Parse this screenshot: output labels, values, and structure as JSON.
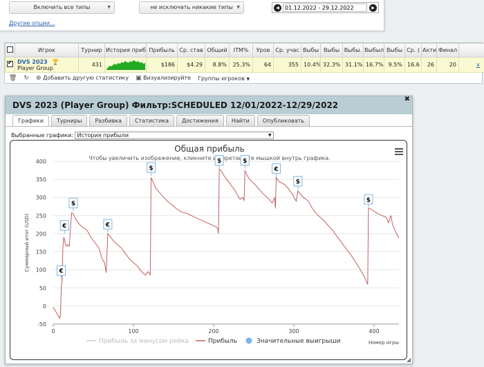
{
  "filters": {
    "type_filter": "Включить все типы",
    "exclude_filter": "не исключать никакие типы",
    "date_range": "01.12.2022 - 29.12.2022",
    "other_options": "Другие опции..."
  },
  "stats": {
    "headers": [
      "Игрок",
      "Турнир",
      "История приб",
      "Прибыль",
      "Ср. став",
      "Общий",
      "ITM%",
      "Уров",
      "Ср. учас",
      "Выбы",
      "Выбы",
      "Выбы.",
      "Выбыл",
      "Выбы",
      "Ср. (",
      "Акти",
      "Финал"
    ],
    "row": {
      "player": "DVS 2023",
      "group": "Player Group",
      "tournaments": "431",
      "profit": "$186",
      "avg_stake": "$4.29",
      "roi": "8.8%",
      "itm": "25.3%",
      "level": "64",
      "avg_entrants": "355",
      "out1": "10.4%",
      "out2": "32.3%",
      "out3": "31.1%",
      "out4": "16.7%",
      "out5": "9.5%",
      "avg_col": "16.6",
      "active": "26",
      "final": "20",
      "remove": "x"
    },
    "toolbar": {
      "add_stat": "Добавить другую статистику",
      "visualize": "Визуализируйте",
      "player_groups": "Группы игроков"
    }
  },
  "dialog": {
    "title": "DVS 2023 (Player Group) Фильтр:SCHEDULED 12/01/2022-12/29/2022",
    "tabs": [
      "Графики",
      "Турниры",
      "Разбивка",
      "Статистика",
      "Достижения",
      "Найти",
      "Опубликовать"
    ],
    "active_tab": 0,
    "selected_label": "Выбранные графики:",
    "selected_value": "История прибыли"
  },
  "chart_data": {
    "type": "line",
    "title": "Общая прибыль",
    "subtitle": "Чтобы увеличить изображение, кликните и перетащите мышкой внутрь графика.",
    "xlabel": "Номер игры",
    "ylabel": "Суммарный итог (USD)",
    "xlim": [
      0,
      431
    ],
    "ylim": [
      -50,
      400
    ],
    "xticks": [
      0,
      100,
      200,
      300,
      400
    ],
    "yticks": [
      -50,
      0,
      50,
      100,
      150,
      200,
      250,
      300,
      350,
      400
    ],
    "grid": true,
    "legend_position": "bottom",
    "series": [
      {
        "name": "Прибыль",
        "color": "#c06060",
        "points": [
          [
            0,
            -3
          ],
          [
            3,
            -15
          ],
          [
            5,
            -22
          ],
          [
            7,
            -30
          ],
          [
            8,
            -34
          ],
          [
            9,
            -25
          ],
          [
            10,
            50
          ],
          [
            11,
            70
          ],
          [
            12,
            160
          ],
          [
            13,
            190
          ],
          [
            14,
            185
          ],
          [
            15,
            170
          ],
          [
            17,
            165
          ],
          [
            18,
            170
          ],
          [
            20,
            165
          ],
          [
            22,
            230
          ],
          [
            23,
            258
          ],
          [
            25,
            255
          ],
          [
            28,
            240
          ],
          [
            33,
            225
          ],
          [
            38,
            215
          ],
          [
            42,
            210
          ],
          [
            47,
            190
          ],
          [
            52,
            175
          ],
          [
            57,
            160
          ],
          [
            61,
            130
          ],
          [
            64,
            120
          ],
          [
            66,
            92
          ],
          [
            68,
            200
          ],
          [
            70,
            195
          ],
          [
            75,
            180
          ],
          [
            80,
            170
          ],
          [
            85,
            160
          ],
          [
            90,
            145
          ],
          [
            95,
            130
          ],
          [
            100,
            120
          ],
          [
            105,
            110
          ],
          [
            110,
            95
          ],
          [
            115,
            85
          ],
          [
            118,
            95
          ],
          [
            120,
            90
          ],
          [
            121,
            85
          ],
          [
            122,
            355
          ],
          [
            124,
            345
          ],
          [
            128,
            325
          ],
          [
            132,
            315
          ],
          [
            138,
            300
          ],
          [
            142,
            290
          ],
          [
            148,
            280
          ],
          [
            153,
            270
          ],
          [
            158,
            262
          ],
          [
            163,
            258
          ],
          [
            168,
            255
          ],
          [
            172,
            250
          ],
          [
            177,
            245
          ],
          [
            182,
            240
          ],
          [
            187,
            235
          ],
          [
            192,
            230
          ],
          [
            197,
            225
          ],
          [
            202,
            220
          ],
          [
            205,
            215
          ],
          [
            206,
            200
          ],
          [
            207,
            378
          ],
          [
            209,
            375
          ],
          [
            213,
            360
          ],
          [
            218,
            345
          ],
          [
            223,
            330
          ],
          [
            227,
            318
          ],
          [
            230,
            305
          ],
          [
            233,
            295
          ],
          [
            236,
            300
          ],
          [
            238,
            292
          ],
          [
            239,
            375
          ],
          [
            242,
            360
          ],
          [
            247,
            345
          ],
          [
            252,
            335
          ],
          [
            257,
            322
          ],
          [
            262,
            310
          ],
          [
            267,
            300
          ],
          [
            271,
            290
          ],
          [
            273,
            285
          ],
          [
            276,
            300
          ],
          [
            277,
            270
          ],
          [
            278,
            355
          ],
          [
            281,
            345
          ],
          [
            285,
            340
          ],
          [
            289,
            335
          ],
          [
            293,
            325
          ],
          [
            296,
            315
          ],
          [
            298,
            310
          ],
          [
            299,
            308
          ],
          [
            300,
            300
          ],
          [
            303,
            290
          ],
          [
            305,
            318
          ],
          [
            308,
            310
          ],
          [
            312,
            300
          ],
          [
            318,
            290
          ],
          [
            323,
            270
          ],
          [
            328,
            255
          ],
          [
            333,
            245
          ],
          [
            338,
            235
          ],
          [
            343,
            222
          ],
          [
            348,
            210
          ],
          [
            353,
            195
          ],
          [
            358,
            180
          ],
          [
            363,
            165
          ],
          [
            368,
            150
          ],
          [
            373,
            135
          ],
          [
            378,
            118
          ],
          [
            383,
            100
          ],
          [
            388,
            80
          ],
          [
            391,
            65
          ],
          [
            392,
            60
          ],
          [
            393,
            270
          ],
          [
            396,
            268
          ],
          [
            400,
            262
          ],
          [
            405,
            255
          ],
          [
            410,
            250
          ],
          [
            415,
            245
          ],
          [
            418,
            230
          ],
          [
            421,
            250
          ],
          [
            423,
            225
          ],
          [
            425,
            215
          ],
          [
            428,
            200
          ],
          [
            431,
            188
          ]
        ]
      },
      {
        "name": "Прибыль за минусом рейка",
        "color": "#cfcfcf",
        "points": []
      }
    ],
    "big_wins": [
      {
        "x": 10,
        "y": 75,
        "symbol": "€"
      },
      {
        "x": 14,
        "y": 200,
        "symbol": "€"
      },
      {
        "x": 25,
        "y": 262,
        "symbol": "$"
      },
      {
        "x": 68,
        "y": 203,
        "symbol": "€"
      },
      {
        "x": 122,
        "y": 360,
        "symbol": "$"
      },
      {
        "x": 207,
        "y": 380,
        "symbol": "$"
      },
      {
        "x": 239,
        "y": 380,
        "symbol": "$"
      },
      {
        "x": 278,
        "y": 357,
        "symbol": "€"
      },
      {
        "x": 305,
        "y": 322,
        "symbol": "$"
      },
      {
        "x": 393,
        "y": 272,
        "symbol": "$"
      }
    ],
    "legend": [
      {
        "label": "Прибыль за минусом рейка",
        "color": "#cfcfcf",
        "kind": "line"
      },
      {
        "label": "Прибыль",
        "color": "#c06060",
        "kind": "line"
      },
      {
        "label": "Значительные выигрыши",
        "color": "#7eb5e8",
        "kind": "dot"
      }
    ]
  },
  "ui": {
    "sparkline": [
      0,
      2,
      4,
      3,
      5,
      6,
      5,
      7,
      6,
      8,
      7,
      9,
      8,
      7,
      9,
      8,
      10,
      9,
      8,
      9,
      7,
      8,
      6,
      7
    ],
    "sparkline_color": "#22aa22"
  }
}
